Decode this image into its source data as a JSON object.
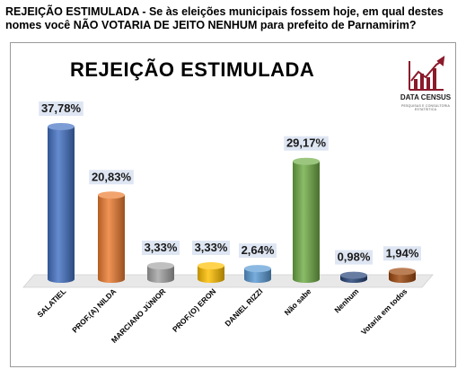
{
  "heading": "REJEIÇÃO ESTIMULADA - Se às eleições municipais fossem hoje, em qual destes nomes você NÃO VOTARIA DE JEITO NENHUM para prefeito de Parnamirim?",
  "logo": {
    "name": "DATA CENSUS",
    "tagline": "PESQUISAS E CONSULTORIA ESTATÍSTICA",
    "color": "#8b1a2b"
  },
  "chart_data": {
    "type": "bar",
    "title": "REJEIÇÃO ESTIMULADA",
    "categories": [
      "SALATIEL",
      "PROF.(A) NILDA",
      "MARCIANO JÚNIOR",
      "PROF.(O) ERON",
      "DANIEL RIZZI",
      "Não sabe",
      "Nenhum",
      "Votaria em todos"
    ],
    "values": [
      37.78,
      20.83,
      3.33,
      3.33,
      2.64,
      29.17,
      0.98,
      1.94
    ],
    "value_labels": [
      "37,78%",
      "20,83%",
      "3,33%",
      "3,33%",
      "2,64%",
      "29,17%",
      "0,98%",
      "1,94%"
    ],
    "colors": [
      "#4472c4",
      "#ed7d31",
      "#a5a5a5",
      "#ffc000",
      "#5b9bd5",
      "#70ad47",
      "#264478",
      "#9e480e"
    ],
    "ylim": [
      0,
      40
    ],
    "grid": false,
    "legend": "none"
  }
}
